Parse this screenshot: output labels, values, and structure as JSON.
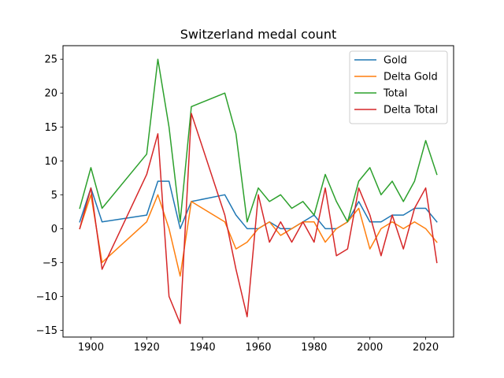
{
  "chart_data": {
    "type": "line",
    "title": "Switzerland medal count",
    "xlabel": "",
    "ylabel": "",
    "xlim": [
      1890,
      2030
    ],
    "ylim": [
      -16,
      27
    ],
    "xticks": [
      1900,
      1920,
      1940,
      1960,
      1980,
      2000,
      2020
    ],
    "yticks": [
      -15,
      -10,
      -5,
      0,
      5,
      10,
      15,
      20,
      25
    ],
    "grid": false,
    "legend_position": "top-right",
    "x": [
      1896,
      1900,
      1904,
      1920,
      1924,
      1928,
      1932,
      1936,
      1948,
      1952,
      1956,
      1960,
      1964,
      1968,
      1972,
      1976,
      1980,
      1984,
      1988,
      1992,
      1996,
      2000,
      2004,
      2008,
      2012,
      2016,
      2020,
      2024
    ],
    "series": [
      {
        "name": "Gold",
        "color": "#1f77b4",
        "values": [
          1,
          6,
          1,
          2,
          7,
          7,
          0,
          4,
          5,
          2,
          0,
          0,
          1,
          0,
          0,
          1,
          2,
          0,
          0,
          1,
          4,
          1,
          1,
          2,
          2,
          3,
          3,
          1
        ]
      },
      {
        "name": "Delta Gold",
        "color": "#ff7f0e",
        "values": [
          0,
          5,
          -5,
          1,
          5,
          0,
          -7,
          4,
          1,
          -3,
          -2,
          0,
          1,
          -1,
          0,
          1,
          1,
          -2,
          0,
          1,
          3,
          -3,
          0,
          1,
          0,
          1,
          0,
          -2
        ]
      },
      {
        "name": "Total",
        "color": "#2ca02c",
        "values": [
          3,
          9,
          3,
          11,
          25,
          15,
          1,
          18,
          20,
          14,
          1,
          6,
          4,
          5,
          3,
          4,
          2,
          8,
          4,
          1,
          7,
          9,
          5,
          7,
          4,
          7,
          13,
          8
        ]
      },
      {
        "name": "Delta Total",
        "color": "#d62728",
        "values": [
          0,
          6,
          -6,
          8,
          14,
          -10,
          -14,
          17,
          2,
          -6,
          -13,
          5,
          -2,
          1,
          -2,
          1,
          -2,
          6,
          -4,
          -3,
          6,
          2,
          -4,
          2,
          -3,
          3,
          6,
          -5
        ]
      }
    ]
  }
}
